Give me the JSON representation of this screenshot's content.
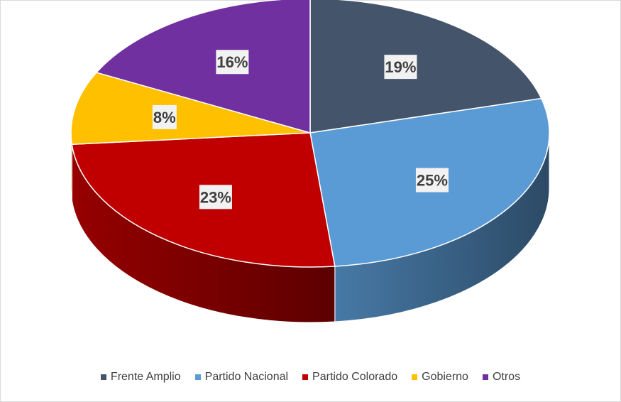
{
  "chart_data": {
    "type": "pie",
    "style": "3d",
    "categories": [
      "Frente Amplio",
      "Partido Nacional",
      "Partido Colorado",
      "Gobierno",
      "Otros"
    ],
    "values": [
      19,
      25,
      23,
      8,
      16
    ],
    "data_labels": [
      "19%",
      "25%",
      "23%",
      "8%",
      "16%"
    ],
    "colors": [
      "#44546a",
      "#5b9bd5",
      "#c00000",
      "#ffc000",
      "#7030a0"
    ],
    "legend_position": "bottom",
    "title": ""
  }
}
